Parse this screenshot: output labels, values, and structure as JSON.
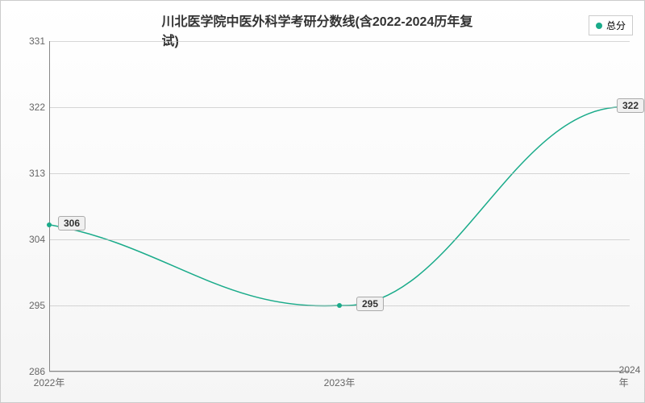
{
  "chart": {
    "type": "line",
    "title": "川北医学院中医外科学考研分数线(含2022-2024历年复试)",
    "title_fontsize": 16,
    "legend": {
      "label": "总分",
      "color": "#1aab8a"
    },
    "background_gradient": [
      "#ffffff",
      "#f5f5f5"
    ],
    "line_color": "#1aab8a",
    "line_width": 1.5,
    "marker_color": "#1aab8a",
    "label_bg": "#f0f0f0",
    "label_border": "#aaaaaa",
    "grid_color": "#bbbbbb",
    "axis_color": "#888888",
    "text_color": "#666666",
    "label_fontsize": 12,
    "x": {
      "categories": [
        "2022年",
        "2023年",
        "2024年"
      ],
      "positions": [
        0,
        0.5,
        1
      ]
    },
    "y": {
      "min": 286,
      "max": 331,
      "ticks": [
        286,
        295,
        304,
        313,
        322,
        331
      ]
    },
    "series": {
      "values": [
        306,
        295,
        322
      ],
      "labels": [
        "306",
        "295",
        "322"
      ]
    }
  }
}
